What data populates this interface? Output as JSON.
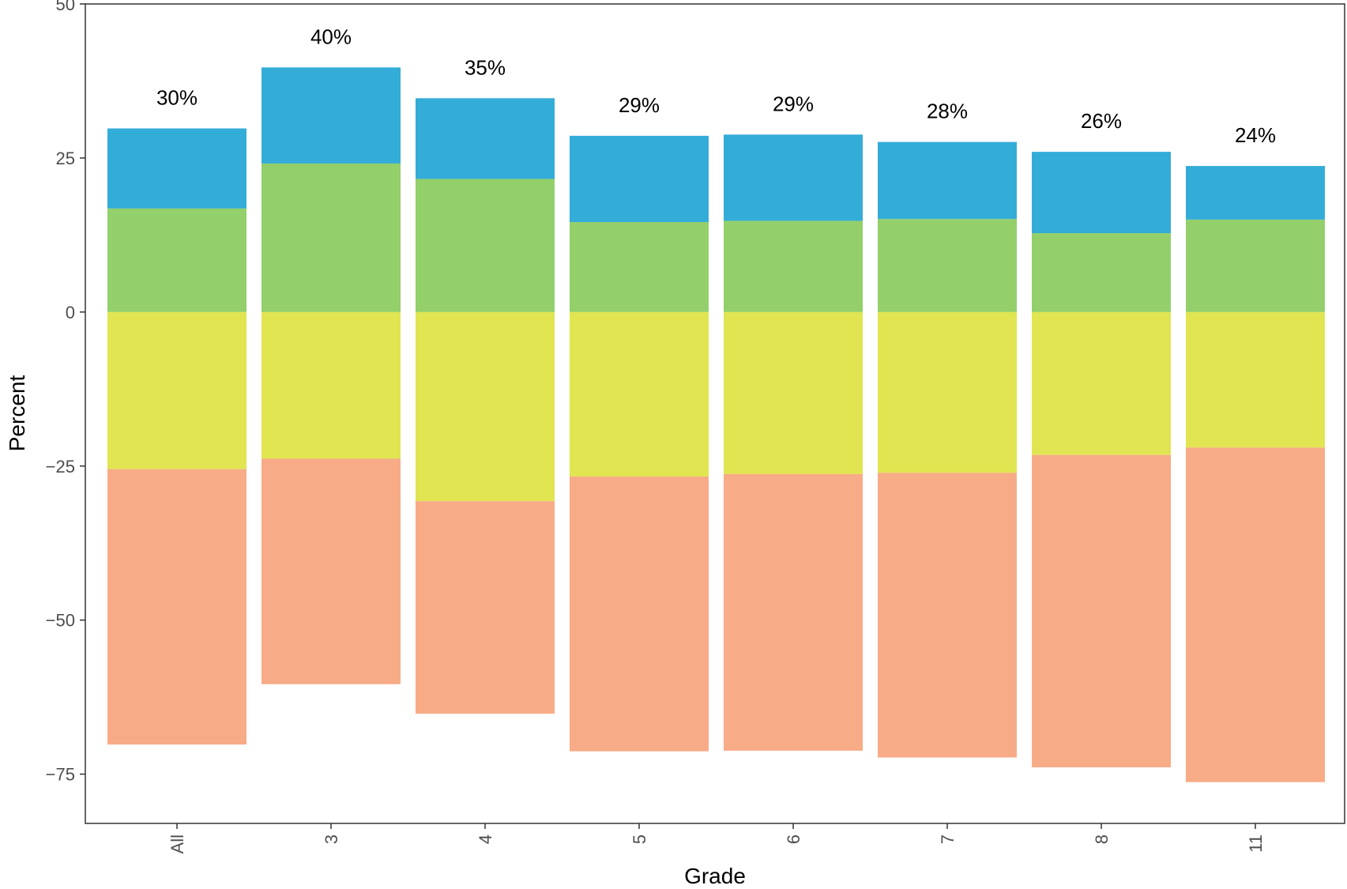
{
  "chart_data": {
    "type": "bar",
    "stacked": "diverging",
    "xlabel": "Grade",
    "ylabel": "Percent",
    "ylim": [
      -83,
      50
    ],
    "yticks": [
      50,
      25,
      0,
      -25,
      -50,
      -75
    ],
    "ytick_labels": [
      "50",
      "25",
      "0",
      "−25",
      "−50",
      "−75"
    ],
    "categories": [
      "All",
      "3",
      "4",
      "5",
      "6",
      "7",
      "8",
      "11"
    ],
    "series": [
      {
        "color": "#F8AB87",
        "values": [
          -44.7,
          -36.6,
          -34.5,
          -44.6,
          -44.9,
          -46.2,
          -50.7,
          -54.3
        ]
      },
      {
        "color": "#E0E551",
        "values": [
          -25.5,
          -23.8,
          -30.7,
          -26.7,
          -26.3,
          -26.1,
          -23.2,
          -22.0
        ]
      },
      {
        "color": "#93CF6A",
        "values": [
          16.8,
          24.1,
          21.6,
          14.6,
          14.8,
          15.1,
          12.8,
          15.0
        ]
      },
      {
        "color": "#34ACD8",
        "values": [
          13.0,
          15.6,
          13.1,
          14.0,
          14.0,
          12.5,
          13.2,
          8.7
        ]
      }
    ],
    "bar_labels": [
      "30%",
      "40%",
      "35%",
      "29%",
      "29%",
      "28%",
      "26%",
      "24%"
    ],
    "grid": false,
    "legend": "none"
  }
}
